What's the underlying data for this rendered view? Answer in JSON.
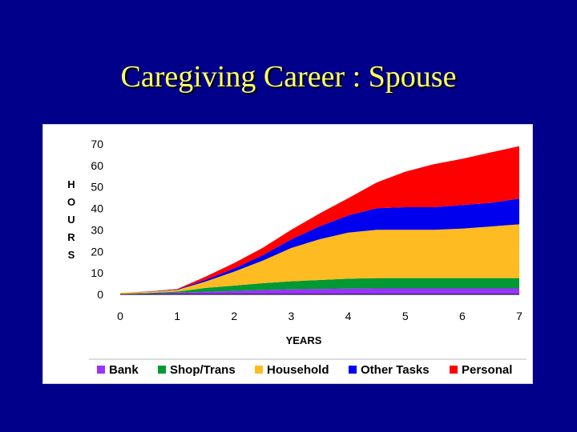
{
  "slide": {
    "title": "Caregiving Career : Spouse",
    "background": "#00008B",
    "title_color": "#FFFF66"
  },
  "chart_data": {
    "type": "area",
    "stacked": true,
    "x": [
      0,
      0.5,
      1,
      1.5,
      2,
      2.5,
      3,
      3.5,
      4,
      4.5,
      5,
      5.5,
      6,
      6.5,
      7
    ],
    "x_ticks": [
      "0",
      "1",
      "2",
      "3",
      "4",
      "5",
      "6",
      "7"
    ],
    "y_ticks": [
      "0",
      "10",
      "20",
      "30",
      "40",
      "50",
      "60",
      "70"
    ],
    "xlabel": "YEARS",
    "ylabel": "HOURS",
    "xlim": [
      0,
      7
    ],
    "ylim": [
      0,
      70
    ],
    "legend_position": "bottom",
    "series": [
      {
        "name": "Bank",
        "color": "#9933FF",
        "values": [
          0.2,
          0.5,
          0.8,
          1.2,
          1.6,
          2.0,
          2.3,
          2.5,
          2.7,
          2.8,
          2.8,
          2.8,
          2.8,
          2.8,
          2.8
        ]
      },
      {
        "name": "Shop/Trans",
        "color": "#009933",
        "values": [
          0,
          0.2,
          0.5,
          1.8,
          2.5,
          3.2,
          3.8,
          4.2,
          4.6,
          4.8,
          4.8,
          4.8,
          4.8,
          4.8,
          4.8
        ]
      },
      {
        "name": "Household",
        "color": "#FFBB22",
        "values": [
          0.5,
          0.5,
          0.8,
          3.0,
          6.5,
          10.5,
          15.5,
          19.0,
          21.5,
          22.5,
          22.5,
          22.5,
          23.0,
          24.0,
          25.0
        ]
      },
      {
        "name": "Other Tasks",
        "color": "#0000EE",
        "values": [
          0,
          0.1,
          0.2,
          0.8,
          1.5,
          2.5,
          4.0,
          6.0,
          8.0,
          10.0,
          10.5,
          10.5,
          11.0,
          11.0,
          12.0
        ]
      },
      {
        "name": "Personal",
        "color": "#FF0000",
        "values": [
          0,
          0.1,
          0.2,
          1.5,
          2.5,
          3.5,
          4.5,
          6.0,
          8.0,
          12.0,
          16.5,
          20.0,
          21.5,
          23.5,
          24.4
        ]
      }
    ]
  }
}
